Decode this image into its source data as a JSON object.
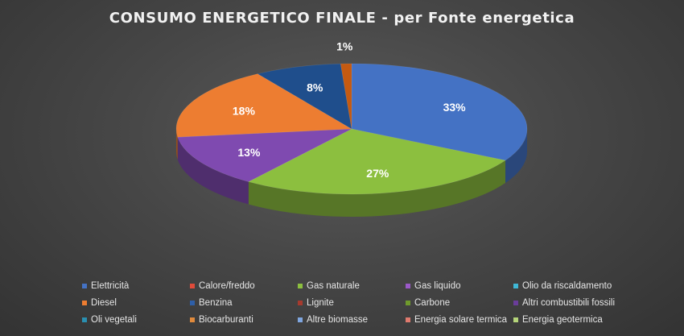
{
  "chart_data": {
    "type": "pie",
    "title": "CONSUMO ENERGETICO FINALE - per Fonte energetica",
    "slices": [
      {
        "label": "Elettricità",
        "value": 33,
        "display": "33%",
        "color": "#4472c4"
      },
      {
        "label": "Gas naturale",
        "value": 27,
        "display": "27%",
        "color": "#8cbf3f"
      },
      {
        "label": "Gas liquido",
        "value": 13,
        "display": "13%",
        "color": "#7f4ab0"
      },
      {
        "label": "Diesel",
        "value": 18,
        "display": "18%",
        "color": "#ed7d31"
      },
      {
        "label": "Benzina",
        "value": 8,
        "display": "8%",
        "color": "#1f4e8c"
      },
      {
        "label": "Biocarburanti",
        "value": 1,
        "display": "1%",
        "color": "#c55a11"
      }
    ],
    "legend": [
      {
        "label": "Elettricità",
        "color": "#4472c4"
      },
      {
        "label": "Calore/freddo",
        "color": "#e04b3a"
      },
      {
        "label": "Gas naturale",
        "color": "#8cbf3f"
      },
      {
        "label": "Gas liquido",
        "color": "#9b59c9"
      },
      {
        "label": "Olio da riscaldamento",
        "color": "#3fb8d6"
      },
      {
        "label": "Diesel",
        "color": "#ed7d31"
      },
      {
        "label": "Benzina",
        "color": "#2e5fa8"
      },
      {
        "label": "Lignite",
        "color": "#a63a2e"
      },
      {
        "label": "Carbone",
        "color": "#6f9a2c"
      },
      {
        "label": "Altri combustibili fossili",
        "color": "#6a3d9a"
      },
      {
        "label": "Oli vegetali",
        "color": "#2a8fb0"
      },
      {
        "label": "Biocarburanti",
        "color": "#e08a3c"
      },
      {
        "label": "Altre biomasse",
        "color": "#7fa6e0"
      },
      {
        "label": "Energia solare termica",
        "color": "#e07a6e"
      },
      {
        "label": "Energia geotermica",
        "color": "#b5d47a"
      }
    ],
    "legend_placement": "bottom"
  }
}
